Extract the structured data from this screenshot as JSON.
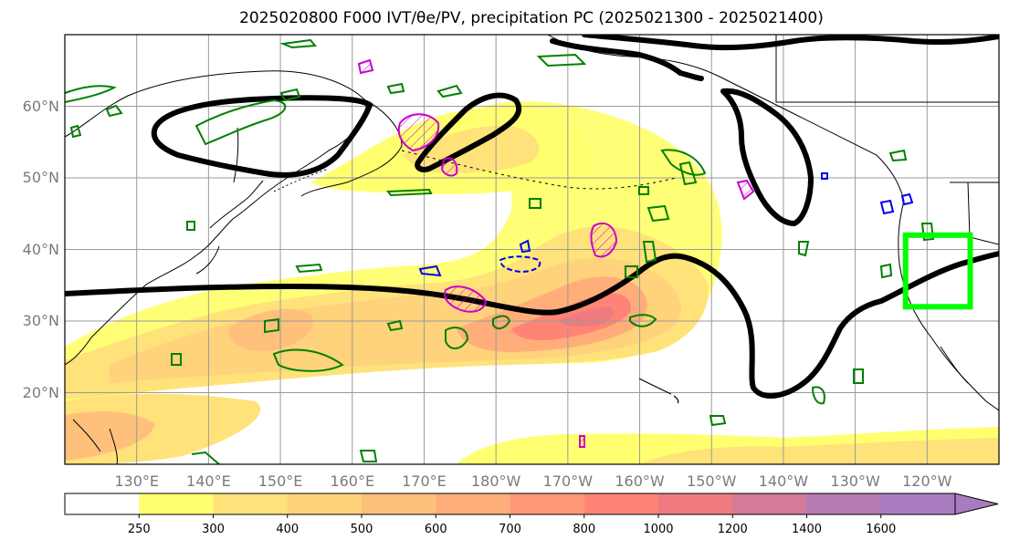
{
  "title": "2025020800 F000 IVT/θe/PV, precipitation PC (2025021300 - 2025021400)",
  "map": {
    "projection": "PlateCarree",
    "extent": {
      "lon_min": 120,
      "lon_max": 250,
      "lat_min": 10,
      "lat_max": 70
    },
    "lat_ticks": [
      {
        "value": 20,
        "label": "20°N"
      },
      {
        "value": 30,
        "label": "30°N"
      },
      {
        "value": 40,
        "label": "40°N"
      },
      {
        "value": 50,
        "label": "50°N"
      },
      {
        "value": 60,
        "label": "60°N"
      }
    ],
    "lon_ticks": [
      {
        "value": 130,
        "label": "130°E"
      },
      {
        "value": 140,
        "label": "140°E"
      },
      {
        "value": 150,
        "label": "150°E"
      },
      {
        "value": 160,
        "label": "160°E"
      },
      {
        "value": 170,
        "label": "170°E"
      },
      {
        "value": 180,
        "label": "180°W"
      },
      {
        "value": 190,
        "label": "170°W"
      },
      {
        "value": 200,
        "label": "160°W"
      },
      {
        "value": 210,
        "label": "150°W"
      },
      {
        "value": 220,
        "label": "140°W"
      },
      {
        "value": 230,
        "label": "130°W"
      },
      {
        "value": 240,
        "label": "120°W"
      }
    ],
    "gridlines": true,
    "highlight_box": {
      "lon_min": 237,
      "lon_max": 246,
      "lat_min": 32,
      "lat_max": 42,
      "color": "#00ff00"
    },
    "contour_colors": {
      "theta_e": "#000000",
      "pv_green": "#008000",
      "pv_magenta": "#cc00cc",
      "pv_blue": "#0000ee"
    }
  },
  "colorbar": {
    "levels": [
      "250",
      "300",
      "400",
      "500",
      "600",
      "700",
      "800",
      "1000",
      "1200",
      "1400",
      "1600"
    ],
    "colors": [
      "#ffffff",
      "#ffff70",
      "#ffe27a",
      "#ffd27c",
      "#ffc07c",
      "#ffae7a",
      "#ff9a78",
      "#ff8476",
      "#ef7b80",
      "#d47a9a",
      "#b57bb3",
      "#a97cc2"
    ],
    "extend": "max"
  }
}
